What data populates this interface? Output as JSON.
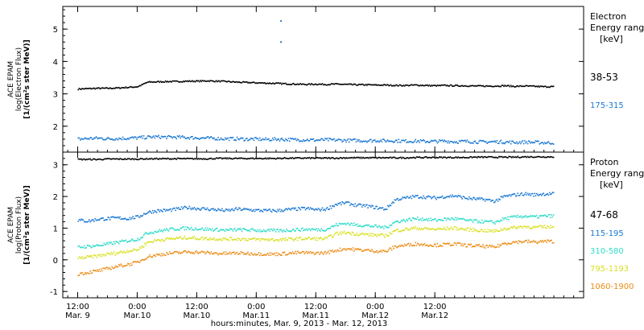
{
  "chart_data": [
    {
      "type": "scatter",
      "ylabel_lines": [
        "ACE EPAM",
        "log(Electron Flux)",
        "[1/(cm²s ster MeV)]"
      ],
      "ylim": [
        1.2,
        5.7
      ],
      "yticks": [
        2,
        3,
        4,
        5
      ],
      "legend_title": [
        "Electron",
        "Energy ranges",
        "[keV]"
      ],
      "series": [
        {
          "name": "38-53",
          "color": "#000000",
          "x": [
            0,
            2,
            4,
            6,
            8,
            10,
            12,
            14,
            16,
            18,
            20,
            22,
            24,
            26,
            28,
            30,
            32,
            34,
            36,
            38,
            40,
            42,
            44,
            46,
            48,
            50,
            52,
            54,
            56,
            58,
            60,
            62,
            64,
            66,
            68,
            70,
            72,
            74,
            76,
            78,
            80,
            82,
            84,
            86,
            88,
            90,
            92,
            94
          ],
          "y": [
            3.15,
            3.16,
            3.17,
            3.17,
            3.18,
            3.2,
            3.22,
            3.36,
            3.37,
            3.38,
            3.38,
            3.39,
            3.39,
            3.4,
            3.39,
            3.38,
            3.36,
            3.35,
            3.34,
            3.33,
            3.32,
            3.31,
            3.3,
            3.29,
            3.3,
            3.29,
            3.3,
            3.29,
            3.28,
            3.28,
            3.27,
            3.27,
            3.26,
            3.26,
            3.27,
            3.26,
            3.25,
            3.26,
            3.25,
            3.25,
            3.24,
            3.24,
            3.24,
            3.25,
            3.23,
            3.24,
            3.23,
            3.22
          ]
        },
        {
          "name": "175-315",
          "color": "#1a78d2",
          "x": [
            0,
            2,
            4,
            6,
            8,
            10,
            12,
            14,
            16,
            18,
            20,
            22,
            24,
            26,
            28,
            30,
            32,
            34,
            36,
            38,
            40,
            42,
            44,
            46,
            48,
            50,
            52,
            54,
            56,
            58,
            60,
            62,
            64,
            66,
            68,
            70,
            72,
            74,
            76,
            78,
            80,
            82,
            84,
            86,
            88,
            90,
            92,
            94
          ],
          "y": [
            1.6,
            1.62,
            1.63,
            1.61,
            1.62,
            1.63,
            1.64,
            1.66,
            1.67,
            1.66,
            1.66,
            1.65,
            1.64,
            1.63,
            1.62,
            1.61,
            1.61,
            1.6,
            1.6,
            1.59,
            1.6,
            1.59,
            1.58,
            1.58,
            1.57,
            1.58,
            1.57,
            1.56,
            1.56,
            1.55,
            1.56,
            1.55,
            1.55,
            1.54,
            1.54,
            1.53,
            1.53,
            1.54,
            1.52,
            1.53,
            1.52,
            1.51,
            1.52,
            1.51,
            1.5,
            1.51,
            1.5,
            1.49
          ]
        },
        {
          "name": "outliers",
          "color": "#1a78d2",
          "x": [
            41,
            41
          ],
          "y": [
            5.25,
            4.6
          ]
        }
      ]
    },
    {
      "type": "scatter",
      "ylabel_lines": [
        "ACE EPAM",
        "log(Proton Flux)",
        "[1/(cm²s ster MeV)]"
      ],
      "ylim": [
        -1.2,
        3.4
      ],
      "yticks": [
        -1,
        0,
        1,
        2,
        3
      ],
      "legend_title": [
        "Proton",
        "Energy ranges",
        "[keV]"
      ],
      "series": [
        {
          "name": "47-68",
          "color": "#000000",
          "x": [
            0,
            2,
            4,
            6,
            8,
            10,
            12,
            14,
            16,
            18,
            20,
            22,
            24,
            26,
            28,
            30,
            32,
            34,
            36,
            38,
            40,
            42,
            44,
            46,
            48,
            50,
            52,
            54,
            56,
            58,
            60,
            62,
            64,
            66,
            68,
            70,
            72,
            74,
            76,
            78,
            80,
            82,
            84,
            86,
            88,
            90,
            92,
            94
          ],
          "y": [
            3.17,
            3.17,
            3.17,
            3.18,
            3.18,
            3.18,
            3.18,
            3.19,
            3.19,
            3.19,
            3.19,
            3.19,
            3.19,
            3.19,
            3.2,
            3.2,
            3.2,
            3.2,
            3.2,
            3.2,
            3.2,
            3.21,
            3.21,
            3.21,
            3.21,
            3.21,
            3.21,
            3.22,
            3.22,
            3.22,
            3.22,
            3.22,
            3.22,
            3.22,
            3.23,
            3.23,
            3.23,
            3.23,
            3.23,
            3.23,
            3.24,
            3.24,
            3.24,
            3.24,
            3.24,
            3.25,
            3.25,
            3.25
          ]
        },
        {
          "name": "115-195",
          "color": "#1a78d2",
          "x": [
            0,
            2,
            4,
            6,
            8,
            10,
            12,
            14,
            16,
            18,
            20,
            22,
            24,
            26,
            28,
            30,
            32,
            34,
            36,
            38,
            40,
            42,
            44,
            46,
            48,
            50,
            52,
            54,
            56,
            58,
            60,
            62,
            64,
            66,
            68,
            70,
            72,
            74,
            76,
            78,
            80,
            82,
            84,
            86,
            88,
            90,
            92,
            94
          ],
          "y": [
            1.25,
            1.22,
            1.28,
            1.3,
            1.32,
            1.3,
            1.35,
            1.5,
            1.55,
            1.56,
            1.6,
            1.65,
            1.62,
            1.6,
            1.58,
            1.55,
            1.6,
            1.58,
            1.56,
            1.55,
            1.55,
            1.58,
            1.6,
            1.62,
            1.58,
            1.6,
            1.75,
            1.8,
            1.72,
            1.7,
            1.65,
            1.6,
            1.9,
            1.95,
            2.0,
            1.98,
            1.95,
            2.0,
            2.02,
            1.95,
            1.92,
            1.9,
            1.85,
            2.0,
            2.05,
            2.08,
            2.05,
            2.08
          ]
        },
        {
          "name": "310-580",
          "color": "#2edcc8",
          "x": [
            0,
            2,
            4,
            6,
            8,
            10,
            12,
            14,
            16,
            18,
            20,
            22,
            24,
            26,
            28,
            30,
            32,
            34,
            36,
            38,
            40,
            42,
            44,
            46,
            48,
            50,
            52,
            54,
            56,
            58,
            60,
            62,
            64,
            66,
            68,
            70,
            72,
            74,
            76,
            78,
            80,
            82,
            84,
            86,
            88,
            90,
            92,
            94
          ],
          "y": [
            0.4,
            0.42,
            0.45,
            0.5,
            0.55,
            0.6,
            0.65,
            0.85,
            0.9,
            0.95,
            0.98,
            1.0,
            0.98,
            0.96,
            0.95,
            0.93,
            0.95,
            0.94,
            0.93,
            0.92,
            0.92,
            0.93,
            0.95,
            0.96,
            0.95,
            0.96,
            1.1,
            1.15,
            1.1,
            1.08,
            1.05,
            1.02,
            1.2,
            1.25,
            1.3,
            1.28,
            1.25,
            1.28,
            1.3,
            1.25,
            1.22,
            1.2,
            1.18,
            1.3,
            1.35,
            1.38,
            1.35,
            1.38
          ]
        },
        {
          "name": "795-1193",
          "color": "#d8e020",
          "x": [
            0,
            2,
            4,
            6,
            8,
            10,
            12,
            14,
            16,
            18,
            20,
            22,
            24,
            26,
            28,
            30,
            32,
            34,
            36,
            38,
            40,
            42,
            44,
            46,
            48,
            50,
            52,
            54,
            56,
            58,
            60,
            62,
            64,
            66,
            68,
            70,
            72,
            74,
            76,
            78,
            80,
            82,
            84,
            86,
            88,
            90,
            92,
            94
          ],
          "y": [
            0.05,
            0.08,
            0.12,
            0.18,
            0.22,
            0.28,
            0.32,
            0.55,
            0.62,
            0.65,
            0.68,
            0.7,
            0.68,
            0.67,
            0.66,
            0.65,
            0.66,
            0.65,
            0.64,
            0.64,
            0.63,
            0.64,
            0.66,
            0.67,
            0.66,
            0.67,
            0.82,
            0.86,
            0.82,
            0.8,
            0.78,
            0.76,
            0.92,
            0.96,
            1.0,
            0.98,
            0.96,
            0.98,
            1.0,
            0.96,
            0.94,
            0.92,
            0.9,
            0.98,
            1.02,
            1.05,
            1.02,
            1.04
          ]
        },
        {
          "name": "1060-1900",
          "color": "#ec8c14",
          "x": [
            0,
            2,
            4,
            6,
            8,
            10,
            12,
            14,
            16,
            18,
            20,
            22,
            24,
            26,
            28,
            30,
            32,
            34,
            36,
            38,
            40,
            42,
            44,
            46,
            48,
            50,
            52,
            54,
            56,
            58,
            60,
            62,
            64,
            66,
            68,
            70,
            72,
            74,
            76,
            78,
            80,
            82,
            84,
            86,
            88,
            90,
            92,
            94
          ],
          "y": [
            -0.45,
            -0.4,
            -0.35,
            -0.28,
            -0.2,
            -0.15,
            -0.08,
            0.1,
            0.15,
            0.2,
            0.22,
            0.25,
            0.24,
            0.22,
            0.2,
            0.2,
            0.21,
            0.2,
            0.19,
            0.18,
            0.18,
            0.2,
            0.22,
            0.22,
            0.21,
            0.22,
            0.3,
            0.35,
            0.32,
            0.3,
            0.28,
            0.26,
            0.42,
            0.46,
            0.5,
            0.48,
            0.46,
            0.48,
            0.5,
            0.46,
            0.44,
            0.42,
            0.4,
            0.52,
            0.56,
            0.58,
            0.56,
            0.58
          ]
        }
      ]
    }
  ],
  "x_axis": {
    "xlim": [
      -3,
      102
    ],
    "ticks": [
      {
        "x": 0,
        "label": [
          "12:00",
          "Mar. 9"
        ]
      },
      {
        "x": 12,
        "label": [
          "0:00",
          "Mar.10"
        ]
      },
      {
        "x": 24,
        "label": [
          "12:00",
          "Mar.10"
        ]
      },
      {
        "x": 36,
        "label": [
          "0:00",
          "Mar.11"
        ]
      },
      {
        "x": 48,
        "label": [
          "12:00",
          "Mar.11"
        ]
      },
      {
        "x": 60,
        "label": [
          "0:00",
          "Mar.12"
        ]
      },
      {
        "x": 72,
        "label": [
          "12:00",
          "Mar.12"
        ]
      }
    ],
    "xlabel": "hours:minutes, Mar. 9, 2013 - Mar. 12, 2013"
  }
}
